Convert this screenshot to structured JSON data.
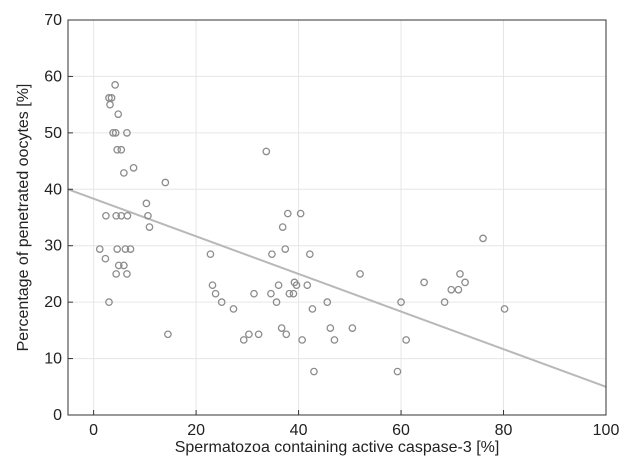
{
  "chart_data": {
    "type": "scatter",
    "title": "",
    "xlabel": "Spermatozoa containing active caspase-3 [%]",
    "ylabel": "Percentage of penetrated oocytes [%]",
    "xlim": [
      -5,
      100
    ],
    "ylim": [
      0,
      70
    ],
    "xticks": [
      0,
      20,
      40,
      60,
      80,
      100
    ],
    "yticks": [
      0,
      10,
      20,
      30,
      40,
      50,
      60,
      70
    ],
    "grid": true,
    "marker": "open-circle",
    "colors": {
      "points": "#8c8c8c",
      "trendline": "#b8b8b8",
      "grid": "#e6e6e6",
      "frame": "#333333"
    },
    "trendline": {
      "type": "linear",
      "x": [
        -5,
        100
      ],
      "y": [
        40,
        5
      ]
    },
    "points": [
      {
        "x": 3,
        "y": 56.2
      },
      {
        "x": 3.5,
        "y": 56.2
      },
      {
        "x": 3.2,
        "y": 55
      },
      {
        "x": 4.2,
        "y": 58.5
      },
      {
        "x": 4.8,
        "y": 53.3
      },
      {
        "x": 3.8,
        "y": 50
      },
      {
        "x": 4.3,
        "y": 50
      },
      {
        "x": 6.5,
        "y": 50
      },
      {
        "x": 4.6,
        "y": 47
      },
      {
        "x": 5.4,
        "y": 47
      },
      {
        "x": 7.8,
        "y": 43.8
      },
      {
        "x": 5.9,
        "y": 42.9
      },
      {
        "x": 14,
        "y": 41.2
      },
      {
        "x": 10.3,
        "y": 37.5
      },
      {
        "x": 2.4,
        "y": 35.3
      },
      {
        "x": 4.4,
        "y": 35.3
      },
      {
        "x": 5.4,
        "y": 35.3
      },
      {
        "x": 6.6,
        "y": 35.3
      },
      {
        "x": 10.6,
        "y": 35.3
      },
      {
        "x": 10.9,
        "y": 33.3
      },
      {
        "x": 1.2,
        "y": 29.4
      },
      {
        "x": 4.6,
        "y": 29.4
      },
      {
        "x": 6.2,
        "y": 29.4
      },
      {
        "x": 7.2,
        "y": 29.4
      },
      {
        "x": 2.3,
        "y": 27.7
      },
      {
        "x": 4.9,
        "y": 26.5
      },
      {
        "x": 5.9,
        "y": 26.5
      },
      {
        "x": 4.4,
        "y": 25
      },
      {
        "x": 6.5,
        "y": 25
      },
      {
        "x": 3,
        "y": 20
      },
      {
        "x": 14.5,
        "y": 14.3
      },
      {
        "x": 22.8,
        "y": 28.5
      },
      {
        "x": 23.2,
        "y": 23
      },
      {
        "x": 23.8,
        "y": 21.5
      },
      {
        "x": 25,
        "y": 20
      },
      {
        "x": 27.3,
        "y": 18.8
      },
      {
        "x": 29.3,
        "y": 13.3
      },
      {
        "x": 30.3,
        "y": 14.3
      },
      {
        "x": 31.3,
        "y": 21.5
      },
      {
        "x": 32.2,
        "y": 14.3
      },
      {
        "x": 33.7,
        "y": 46.7
      },
      {
        "x": 34.6,
        "y": 21.5
      },
      {
        "x": 34.8,
        "y": 28.5
      },
      {
        "x": 35.7,
        "y": 20
      },
      {
        "x": 36.1,
        "y": 23
      },
      {
        "x": 36.7,
        "y": 15.4
      },
      {
        "x": 36.9,
        "y": 33.3
      },
      {
        "x": 37.4,
        "y": 29.4
      },
      {
        "x": 37.6,
        "y": 14.3
      },
      {
        "x": 37.9,
        "y": 35.7
      },
      {
        "x": 38.2,
        "y": 21.5
      },
      {
        "x": 39.0,
        "y": 21.5
      },
      {
        "x": 39.2,
        "y": 23.5
      },
      {
        "x": 39.6,
        "y": 23
      },
      {
        "x": 40.4,
        "y": 35.7
      },
      {
        "x": 40.7,
        "y": 13.3
      },
      {
        "x": 41.7,
        "y": 23
      },
      {
        "x": 42.2,
        "y": 28.5
      },
      {
        "x": 42.7,
        "y": 18.8
      },
      {
        "x": 43.0,
        "y": 7.7
      },
      {
        "x": 45.6,
        "y": 20
      },
      {
        "x": 46.2,
        "y": 15.4
      },
      {
        "x": 47,
        "y": 13.3
      },
      {
        "x": 50.5,
        "y": 15.4
      },
      {
        "x": 52,
        "y": 25
      },
      {
        "x": 59.3,
        "y": 7.7
      },
      {
        "x": 60,
        "y": 20
      },
      {
        "x": 61,
        "y": 13.3
      },
      {
        "x": 64.5,
        "y": 23.5
      },
      {
        "x": 68.5,
        "y": 20
      },
      {
        "x": 69.8,
        "y": 22.2
      },
      {
        "x": 71.2,
        "y": 22.2
      },
      {
        "x": 71.5,
        "y": 25
      },
      {
        "x": 72.5,
        "y": 23.5
      },
      {
        "x": 76,
        "y": 31.3
      },
      {
        "x": 80.2,
        "y": 18.8
      }
    ]
  }
}
